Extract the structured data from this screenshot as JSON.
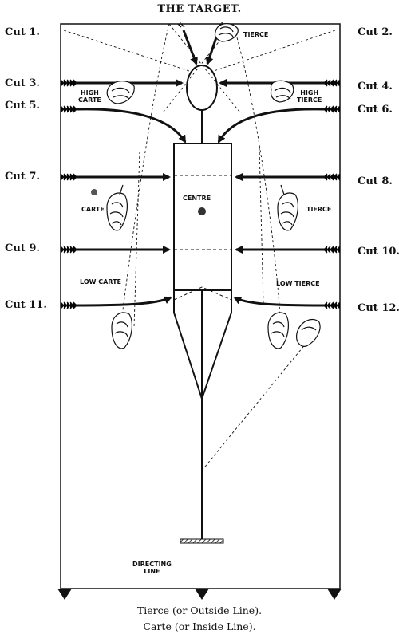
{
  "title": "THE TARGET.",
  "cuts": {
    "c1": "Cut 1.",
    "c2": "Cut 2.",
    "c3": "Cut 3.",
    "c4": "Cut 4.",
    "c5": "Cut 5.",
    "c6": "Cut 6.",
    "c7": "Cut 7.",
    "c8": "Cut 8.",
    "c9": "Cut 9.",
    "c10": "Cut 10.",
    "c11": "Cut 11.",
    "c12": "Cut 12."
  },
  "labels": {
    "tierce": "TIERCE",
    "high_carte": "HIGH\nCARTE",
    "high_tierce": "HIGH\nTIERCE",
    "carte": "CARTE",
    "centre": "CENTRE",
    "tierce_right": "TIERCE",
    "low_carte": "LOW CARTE",
    "low_tierce": "LOW TIERCE",
    "directing_line": "DIRECTING\nLINE"
  },
  "captions": {
    "line1": "Tierce (or Outside Line).",
    "line2": "Carte (or Inside Line)."
  },
  "colors": {
    "ink": "#111111",
    "paper": "#ffffff",
    "mark": "#555555"
  }
}
